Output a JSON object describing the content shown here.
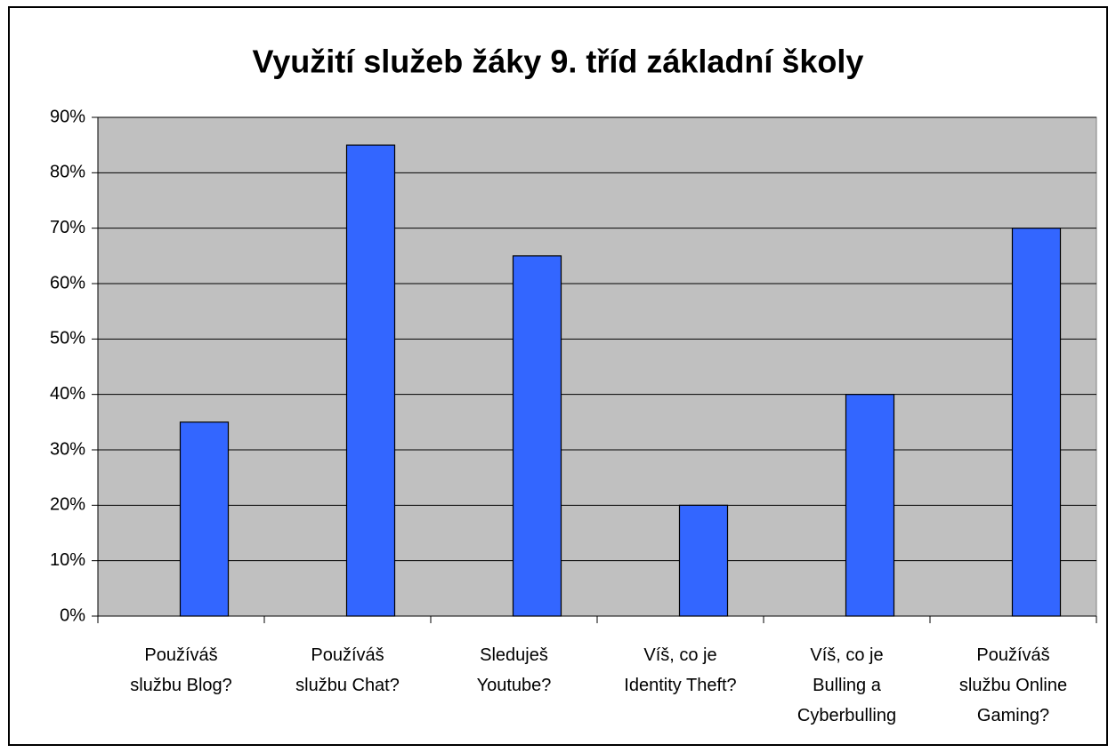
{
  "chart_data": {
    "type": "bar",
    "title": "Využití služeb žáky 9. tříd základní školy",
    "categories": [
      "Používáš\nslužbu Blog?",
      "Používáš\nslužbu  Chat?",
      "Sleduješ\nYoutube?",
      "Víš, co je\nIdentity Theft?",
      "Víš, co je\nBulling a\nCyberbulling",
      "Používáš\nslužbu Online\nGaming?"
    ],
    "values": [
      35,
      85,
      65,
      20,
      40,
      70
    ],
    "color": "#3366ff",
    "ylim": [
      0,
      90
    ],
    "yticks": [
      {
        "value": 0,
        "label": "0%"
      },
      {
        "value": 10,
        "label": "10%"
      },
      {
        "value": 20,
        "label": "20%"
      },
      {
        "value": 30,
        "label": "30%"
      },
      {
        "value": 40,
        "label": "40%"
      },
      {
        "value": 50,
        "label": "50%"
      },
      {
        "value": 60,
        "label": "60%"
      },
      {
        "value": 70,
        "label": "70%"
      },
      {
        "value": 80,
        "label": "80%"
      },
      {
        "value": 90,
        "label": "90%"
      }
    ],
    "grid": true
  }
}
